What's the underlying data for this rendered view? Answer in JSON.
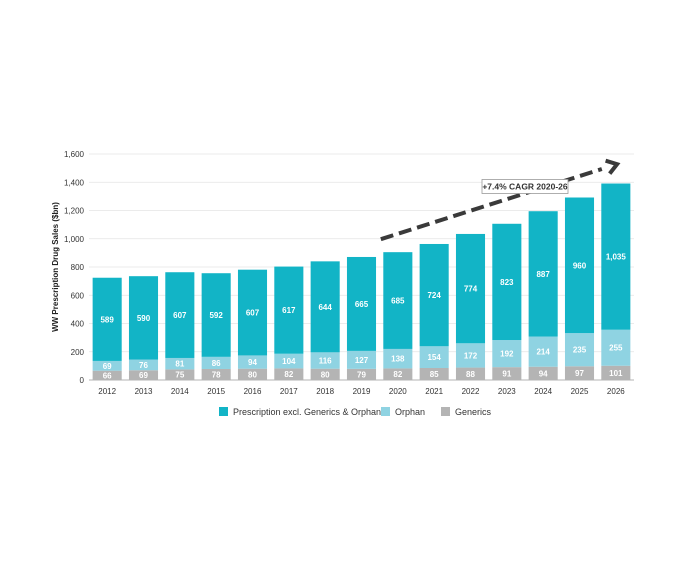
{
  "chart_data": {
    "type": "bar",
    "stacked": true,
    "ylabel": "WW Prescription Drug Sales ($bn)",
    "xlabel": "",
    "ylim": [
      0,
      1600
    ],
    "yticks": [
      0,
      200,
      400,
      600,
      800,
      1000,
      1200,
      1400,
      1600
    ],
    "ytick_labels": [
      "0",
      "200",
      "400",
      "600",
      "800",
      "1,000",
      "1,200",
      "1,400",
      "1,600"
    ],
    "grid": "horizontal",
    "legend_position": "bottom-center",
    "categories": [
      "2012",
      "2013",
      "2014",
      "2015",
      "2016",
      "2017",
      "2018",
      "2019",
      "2020",
      "2021",
      "2022",
      "2023",
      "2024",
      "2025",
      "2026"
    ],
    "series": [
      {
        "name": "Generics",
        "color": "#b4b4b4",
        "values": [
          66,
          69,
          75,
          78,
          80,
          82,
          80,
          79,
          82,
          85,
          88,
          91,
          94,
          97,
          101
        ]
      },
      {
        "name": "Orphan",
        "color": "#8fd3e2",
        "values": [
          69,
          76,
          81,
          86,
          94,
          104,
          116,
          127,
          138,
          154,
          172,
          192,
          214,
          235,
          255
        ]
      },
      {
        "name": "Prescription excl. Generics & Orphan",
        "color": "#12b4c6",
        "values": [
          589,
          590,
          607,
          592,
          607,
          617,
          644,
          665,
          685,
          724,
          774,
          823,
          887,
          960,
          1035
        ]
      }
    ],
    "legend_order": [
      "Prescription excl. Generics & Orphan",
      "Orphan",
      "Generics"
    ],
    "value_labels": [
      [
        "66",
        "69",
        "75",
        "78",
        "80",
        "82",
        "80",
        "79",
        "82",
        "85",
        "88",
        "91",
        "94",
        "97",
        "101"
      ],
      [
        "69",
        "76",
        "81",
        "86",
        "94",
        "104",
        "116",
        "127",
        "138",
        "154",
        "172",
        "192",
        "214",
        "235",
        "255"
      ],
      [
        "589",
        "590",
        "607",
        "592",
        "607",
        "617",
        "644",
        "665",
        "685",
        "724",
        "774",
        "823",
        "887",
        "960",
        "1,035"
      ]
    ],
    "annotation": {
      "text": "+7.4% CAGR 2020-26",
      "arrow_from_category": "2020",
      "arrow_to_category": "2026",
      "arrow_color": "#3a3a3a"
    }
  }
}
